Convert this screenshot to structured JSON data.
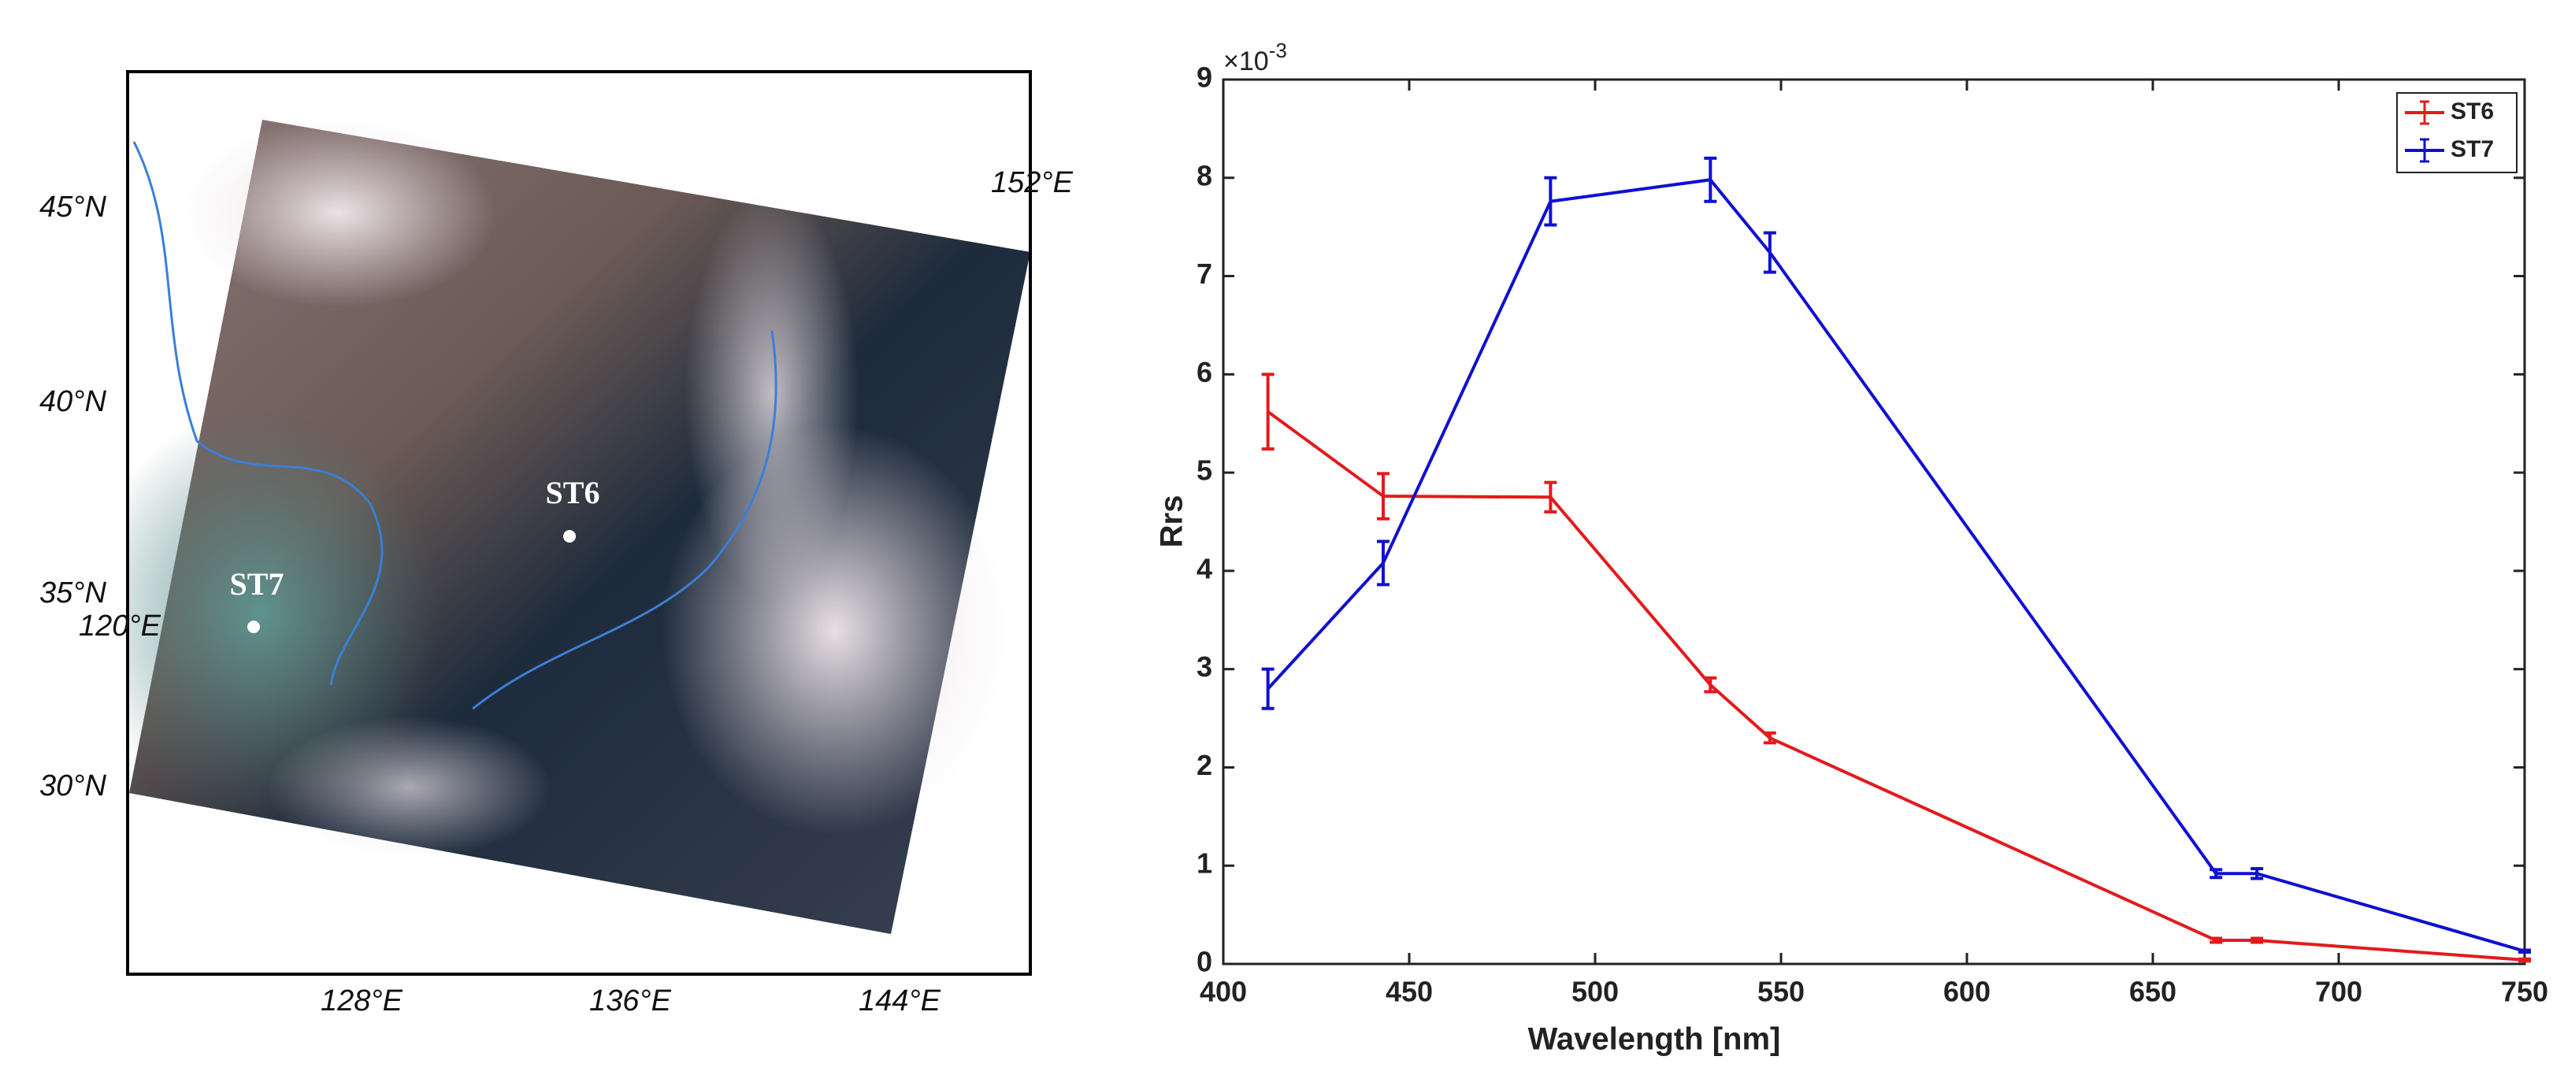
{
  "map": {
    "lat_labels": [
      "45°N",
      "40°N",
      "35°N",
      "30°N"
    ],
    "lon_labels": [
      "128°E",
      "136°E",
      "144°E",
      "120°E",
      "152°E"
    ],
    "stations": [
      "ST6",
      "ST7"
    ]
  },
  "chart_data": {
    "type": "line",
    "x_label": "Wavelength [nm]",
    "y_label": "Rrs",
    "y_multiplier": "×10",
    "y_exponent": "-3",
    "x": [
      412,
      443,
      488,
      531,
      547,
      667,
      678,
      750
    ],
    "series": [
      {
        "name": "ST6",
        "color": "#e31a1c",
        "values": [
          5.62,
          4.76,
          4.75,
          2.84,
          2.3,
          0.24,
          0.24,
          0.04
        ],
        "errors": [
          0.38,
          0.23,
          0.15,
          0.07,
          0.05,
          0.02,
          0.02,
          0.01
        ]
      },
      {
        "name": "ST7",
        "color": "#1010d0",
        "values": [
          2.8,
          4.08,
          7.76,
          7.98,
          7.24,
          0.92,
          0.92,
          0.13
        ],
        "errors": [
          0.2,
          0.22,
          0.24,
          0.22,
          0.2,
          0.04,
          0.05,
          0.01
        ]
      }
    ],
    "xlim": [
      400,
      750
    ],
    "xticks": [
      400,
      450,
      500,
      550,
      600,
      650,
      700,
      750
    ],
    "ylim": [
      0,
      9
    ],
    "yticks": [
      0,
      1,
      2,
      3,
      4,
      5,
      6,
      7,
      8,
      9
    ],
    "legend": "upper-right"
  }
}
